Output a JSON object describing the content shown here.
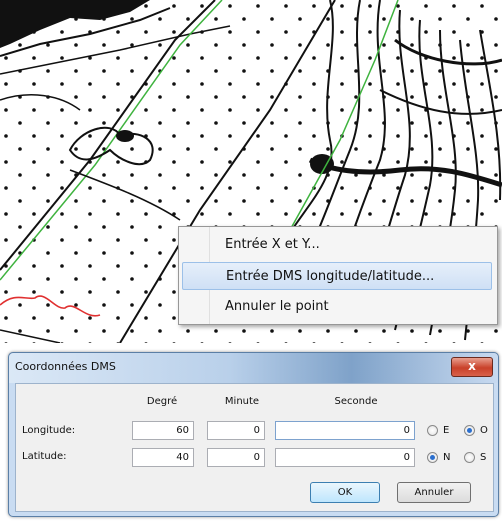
{
  "context_menu": {
    "items": [
      {
        "label": "Entrée X et Y..."
      },
      {
        "label": "Entrée DMS longitude/latitude..."
      },
      {
        "label": "Annuler le point"
      }
    ]
  },
  "dialog": {
    "title": "Coordonnées DMS",
    "close_label": "x",
    "headers": {
      "degre": "Degré",
      "minute": "Minute",
      "seconde": "Seconde"
    },
    "longitude": {
      "label": "Longitude:",
      "degre": "60",
      "minute": "0",
      "seconde": "0",
      "dir_a": "E",
      "dir_b": "O"
    },
    "latitude": {
      "label": "Latitude:",
      "degre": "40",
      "minute": "0",
      "seconde": "0",
      "dir_a": "N",
      "dir_b": "S"
    },
    "ok_label": "OK",
    "cancel_label": "Annuler"
  },
  "colors": {
    "highlight": "#cfe0f5",
    "dialog_frame": "#c9dcf2",
    "close": "#c9412a",
    "map_lines_green": "#3fb33f",
    "map_lines_red": "#e03030"
  }
}
